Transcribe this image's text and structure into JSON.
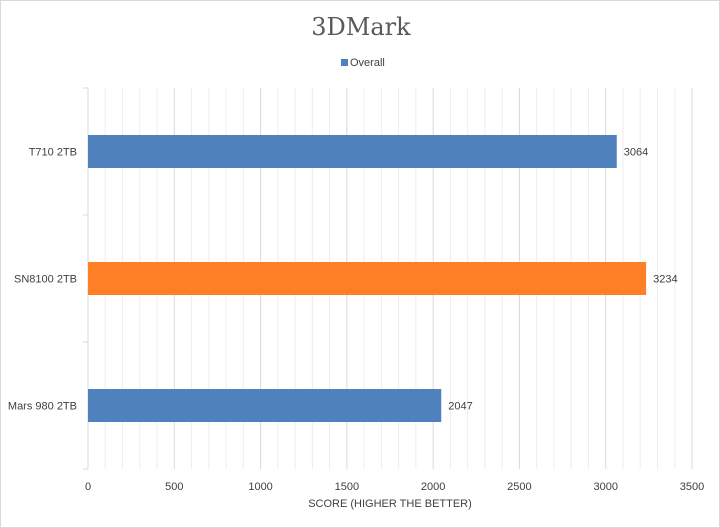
{
  "chart_data": {
    "type": "bar",
    "orientation": "horizontal",
    "title": "3DMark",
    "xlabel": "SCORE (HIGHER THE BETTER)",
    "ylabel": "",
    "categories": [
      "T710 2TB",
      "SN8100 2TB",
      "Mars 980 2TB"
    ],
    "series": [
      {
        "name": "Overall",
        "values": [
          3064,
          3234,
          2047
        ]
      }
    ],
    "bar_colors": [
      "#4f81bd",
      "#ff7f27",
      "#4f81bd"
    ],
    "xlim": [
      0,
      3500
    ],
    "xticks": [
      "0",
      "500",
      "1000",
      "1500",
      "2000",
      "2500",
      "3000",
      "3500"
    ],
    "xtick_values": [
      0,
      500,
      1000,
      1500,
      2000,
      2500,
      3000,
      3500
    ],
    "grid": true,
    "legend_position": "top-center",
    "colors": {
      "series": "#4f81bd",
      "highlight": "#ff7f27",
      "grid": "#d9d9d9"
    }
  }
}
